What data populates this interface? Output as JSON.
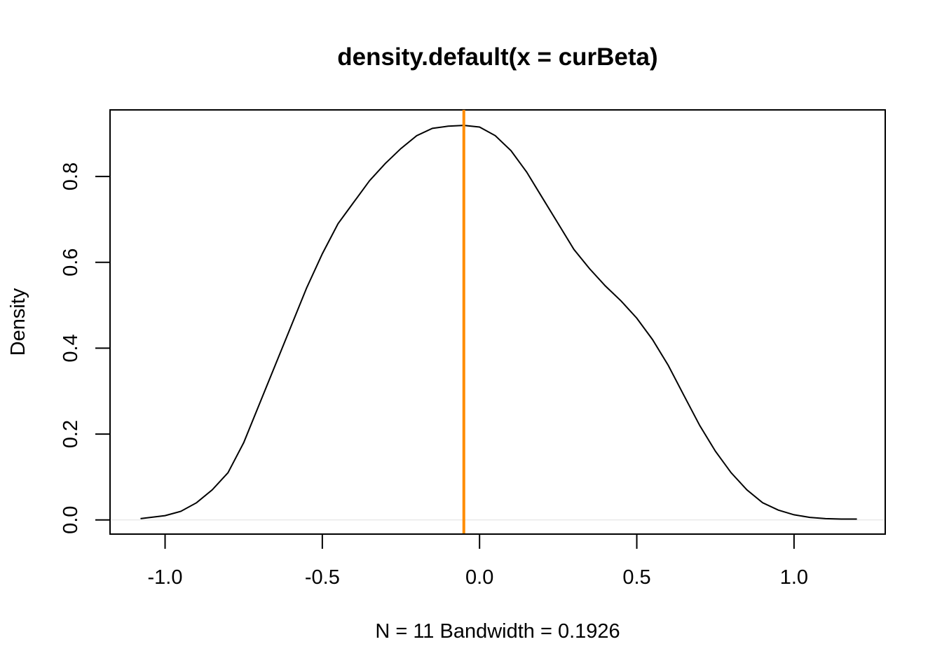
{
  "chart_data": {
    "type": "line",
    "title": "density.default(x = curBeta)",
    "xlabel": "N = 11   Bandwidth = 0.1926",
    "ylabel": "Density",
    "xlim": [
      -1.175,
      1.29
    ],
    "ylim": [
      -0.033,
      0.955
    ],
    "x_ticks": [
      -1.0,
      -0.5,
      0.0,
      0.5,
      1.0
    ],
    "x_tick_labels": [
      "-1.0",
      "-0.5",
      "0.0",
      "0.5",
      "1.0"
    ],
    "y_ticks": [
      0.0,
      0.2,
      0.4,
      0.6,
      0.8
    ],
    "y_tick_labels": [
      "0.0",
      "0.2",
      "0.4",
      "0.6",
      "0.8"
    ],
    "grid": false,
    "series": [
      {
        "color": "#000000",
        "x": [
          -1.078,
          -1.0,
          -0.95,
          -0.9,
          -0.85,
          -0.8,
          -0.75,
          -0.7,
          -0.65,
          -0.6,
          -0.55,
          -0.5,
          -0.45,
          -0.4,
          -0.35,
          -0.3,
          -0.25,
          -0.2,
          -0.15,
          -0.1,
          -0.05,
          0.0,
          0.05,
          0.1,
          0.15,
          0.2,
          0.25,
          0.3,
          0.35,
          0.4,
          0.45,
          0.5,
          0.55,
          0.6,
          0.65,
          0.7,
          0.75,
          0.8,
          0.85,
          0.9,
          0.95,
          1.0,
          1.05,
          1.1,
          1.15,
          1.2
        ],
        "y": [
          0.003,
          0.01,
          0.02,
          0.04,
          0.07,
          0.11,
          0.18,
          0.27,
          0.36,
          0.45,
          0.54,
          0.62,
          0.69,
          0.74,
          0.79,
          0.83,
          0.865,
          0.895,
          0.912,
          0.917,
          0.919,
          0.915,
          0.895,
          0.86,
          0.81,
          0.75,
          0.69,
          0.63,
          0.585,
          0.545,
          0.51,
          0.47,
          0.42,
          0.36,
          0.29,
          0.22,
          0.16,
          0.11,
          0.07,
          0.04,
          0.023,
          0.012,
          0.006,
          0.003,
          0.002,
          0.002
        ]
      }
    ],
    "reference_line": {
      "orientation": "vertical",
      "x": -0.05,
      "color": "#FF8C00"
    },
    "baseline": {
      "y": 0.0,
      "color": "#e6e6e6"
    }
  }
}
